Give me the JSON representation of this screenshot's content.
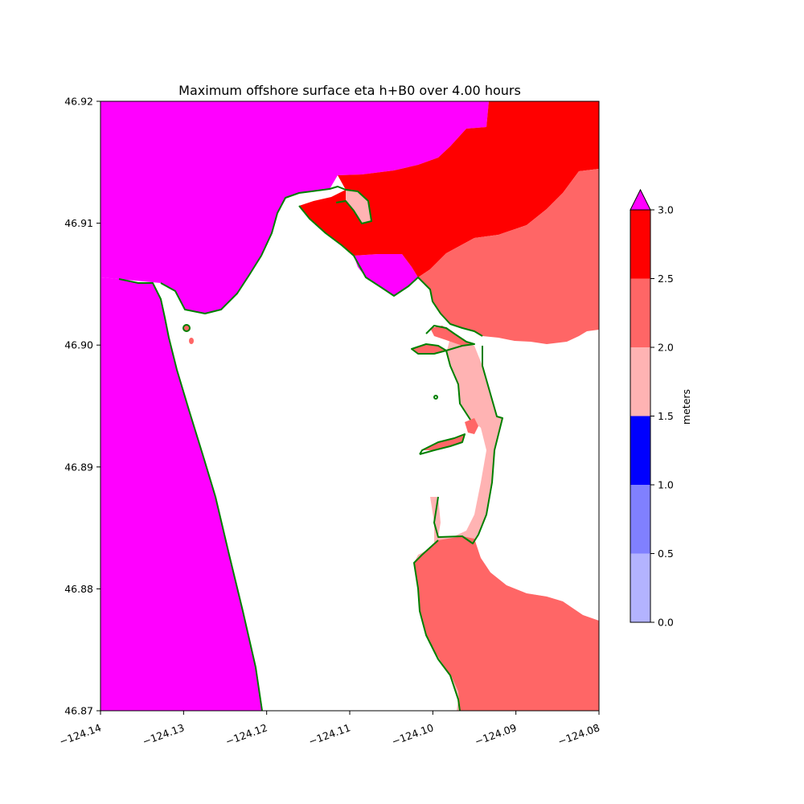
{
  "chart_data": {
    "type": "heatmap",
    "title": "Maximum offshore surface eta h+B0 over 4.00 hours",
    "xlim": [
      -124.14,
      -124.08
    ],
    "ylim": [
      46.87,
      46.92
    ],
    "x_ticks": [
      -124.14,
      -124.13,
      -124.12,
      -124.11,
      -124.1,
      -124.09,
      -124.08
    ],
    "x_tick_labels": [
      "−124.14",
      "−124.13",
      "−124.12",
      "−124.11",
      "−124.10",
      "−124.09",
      "−124.08"
    ],
    "y_ticks": [
      46.87,
      46.88,
      46.89,
      46.9,
      46.91,
      46.92
    ],
    "y_tick_labels": [
      "46.87",
      "46.88",
      "46.89",
      "46.90",
      "46.91",
      "46.92"
    ],
    "colorbar": {
      "label": "meters",
      "levels": [
        0.0,
        0.5,
        1.0,
        1.5,
        2.0,
        2.5,
        3.0
      ],
      "level_labels": [
        "0.0",
        "0.5",
        "1.0",
        "1.5",
        "2.0",
        "2.5",
        "3.0"
      ],
      "colors": [
        "#b3b3ff",
        "#8080ff",
        "#0000ff",
        "#ffb3b3",
        "#ff6666",
        "#ff0000"
      ],
      "extend_max_color": "#ff00ff",
      "extend": "max"
    },
    "regions": [
      {
        "name": "land",
        "color": "#ffffff",
        "value_range": "dry"
      },
      {
        "name": "ocean-west",
        "color": "#ff00ff",
        "value_range": "> 3.0"
      },
      {
        "name": "bay-north",
        "color": "#ff00ff",
        "value_range": "> 3.0"
      },
      {
        "name": "channel-north",
        "color": "#ff0000",
        "value_range": "2.5 - 3.0"
      },
      {
        "name": "bay-east-upper",
        "color": "#ff6666",
        "value_range": "2.0 - 2.5"
      },
      {
        "name": "bay-east-middle",
        "color": "#ffb3b3",
        "value_range": "1.5 - 2.0"
      },
      {
        "name": "bay-south",
        "color": "#ff6666",
        "value_range": "2.0 - 2.5"
      }
    ],
    "shoreline_color": "#008000",
    "grid": false
  }
}
